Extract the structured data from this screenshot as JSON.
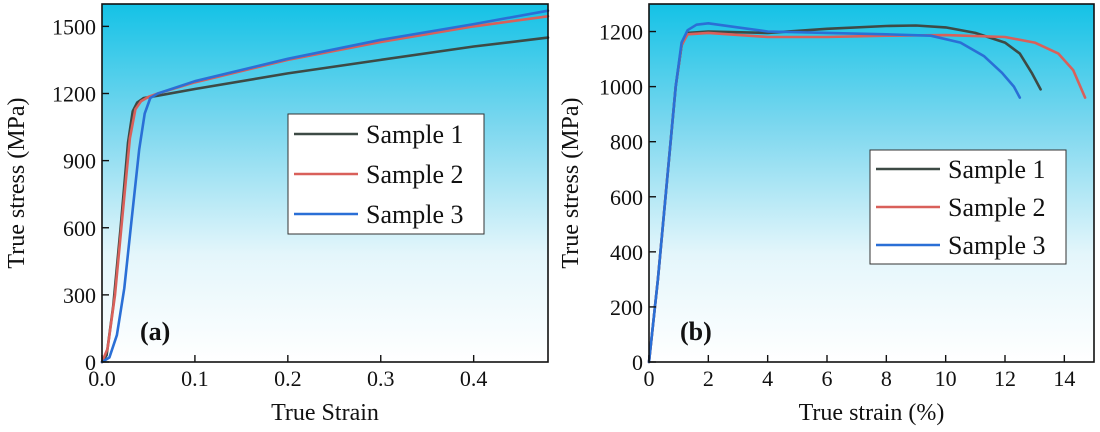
{
  "chart_data": [
    {
      "type": "line",
      "panel_label": "(a)",
      "xlabel": "True Strain",
      "ylabel": "True stress (MPa)",
      "xlim": [
        0,
        0.48
      ],
      "ylim": [
        0,
        1600
      ],
      "xticks": [
        0.0,
        0.1,
        0.2,
        0.3,
        0.4
      ],
      "xtick_labels": [
        "0.0",
        "0.1",
        "0.2",
        "0.3",
        "0.4"
      ],
      "yticks": [
        0,
        300,
        600,
        900,
        1200,
        1500
      ],
      "ytick_labels": [
        "0",
        "300",
        "600",
        "900",
        "1200",
        "1500"
      ],
      "grid": false,
      "legend_position": "right-middle",
      "series": [
        {
          "name": "Sample 1",
          "color": "#3d4a45",
          "points": [
            [
              0,
              0
            ],
            [
              0.005,
              30
            ],
            [
              0.012,
              250
            ],
            [
              0.02,
              600
            ],
            [
              0.028,
              980
            ],
            [
              0.033,
              1120
            ],
            [
              0.038,
              1160
            ],
            [
              0.045,
              1180
            ],
            [
              0.06,
              1190
            ],
            [
              0.1,
              1220
            ],
            [
              0.2,
              1290
            ],
            [
              0.3,
              1350
            ],
            [
              0.4,
              1410
            ],
            [
              0.48,
              1450
            ]
          ]
        },
        {
          "name": "Sample 2",
          "color": "#d9605a",
          "points": [
            [
              0,
              0
            ],
            [
              0.006,
              60
            ],
            [
              0.014,
              300
            ],
            [
              0.022,
              650
            ],
            [
              0.03,
              1000
            ],
            [
              0.036,
              1130
            ],
            [
              0.042,
              1165
            ],
            [
              0.05,
              1185
            ],
            [
              0.06,
              1200
            ],
            [
              0.1,
              1250
            ],
            [
              0.2,
              1350
            ],
            [
              0.3,
              1430
            ],
            [
              0.4,
              1500
            ],
            [
              0.48,
              1545
            ]
          ]
        },
        {
          "name": "Sample 3",
          "color": "#2a6fd6",
          "points": [
            [
              0,
              0
            ],
            [
              0.008,
              20
            ],
            [
              0.016,
              120
            ],
            [
              0.024,
              330
            ],
            [
              0.032,
              640
            ],
            [
              0.04,
              950
            ],
            [
              0.046,
              1110
            ],
            [
              0.052,
              1180
            ],
            [
              0.06,
              1200
            ],
            [
              0.1,
              1255
            ],
            [
              0.2,
              1355
            ],
            [
              0.3,
              1440
            ],
            [
              0.4,
              1510
            ],
            [
              0.48,
              1570
            ]
          ]
        }
      ]
    },
    {
      "type": "line",
      "panel_label": "(b)",
      "xlabel": "True strain (%)",
      "ylabel": "True stress (MPa)",
      "xlim": [
        0,
        15
      ],
      "ylim": [
        0,
        1300
      ],
      "xticks": [
        0,
        2,
        4,
        6,
        8,
        10,
        12,
        14
      ],
      "xtick_labels": [
        "0",
        "2",
        "4",
        "6",
        "8",
        "10",
        "12",
        "14"
      ],
      "yticks": [
        0,
        200,
        400,
        600,
        800,
        1000,
        1200
      ],
      "ytick_labels": [
        "0",
        "200",
        "400",
        "600",
        "800",
        "1000",
        "1200"
      ],
      "grid": false,
      "legend_position": "right-middle",
      "series": [
        {
          "name": "Sample 1",
          "color": "#3d4a45",
          "points": [
            [
              0,
              0
            ],
            [
              0.3,
              300
            ],
            [
              0.6,
              650
            ],
            [
              0.9,
              1000
            ],
            [
              1.1,
              1150
            ],
            [
              1.3,
              1195
            ],
            [
              2,
              1200
            ],
            [
              4,
              1195
            ],
            [
              6,
              1210
            ],
            [
              8,
              1220
            ],
            [
              9,
              1222
            ],
            [
              10,
              1215
            ],
            [
              11,
              1195
            ],
            [
              12,
              1160
            ],
            [
              12.5,
              1120
            ],
            [
              12.9,
              1050
            ],
            [
              13.2,
              990
            ]
          ]
        },
        {
          "name": "Sample 2",
          "color": "#d9605a",
          "points": [
            [
              0,
              0
            ],
            [
              0.3,
              300
            ],
            [
              0.6,
              650
            ],
            [
              0.9,
              1000
            ],
            [
              1.1,
              1150
            ],
            [
              1.3,
              1190
            ],
            [
              2,
              1195
            ],
            [
              4,
              1180
            ],
            [
              6,
              1180
            ],
            [
              8,
              1185
            ],
            [
              10,
              1187
            ],
            [
              12,
              1180
            ],
            [
              13,
              1160
            ],
            [
              13.8,
              1120
            ],
            [
              14.3,
              1060
            ],
            [
              14.7,
              960
            ]
          ]
        },
        {
          "name": "Sample 3",
          "color": "#2a6fd6",
          "points": [
            [
              0,
              0
            ],
            [
              0.3,
              300
            ],
            [
              0.6,
              650
            ],
            [
              0.9,
              1000
            ],
            [
              1.1,
              1160
            ],
            [
              1.3,
              1205
            ],
            [
              1.6,
              1225
            ],
            [
              2,
              1230
            ],
            [
              3,
              1215
            ],
            [
              4,
              1200
            ],
            [
              6,
              1195
            ],
            [
              8,
              1190
            ],
            [
              9.5,
              1185
            ],
            [
              10.5,
              1160
            ],
            [
              11.3,
              1110
            ],
            [
              11.9,
              1050
            ],
            [
              12.3,
              1000
            ],
            [
              12.5,
              960
            ]
          ]
        }
      ]
    }
  ]
}
